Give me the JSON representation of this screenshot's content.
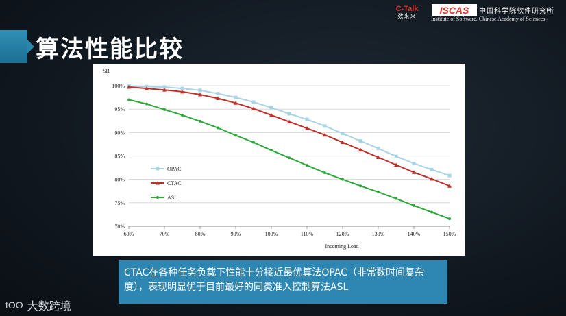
{
  "slide": {
    "title": "算法性能比较",
    "caption": "CTAC在各种任务负载下性能十分接近最优算法OPAC（非常数时间复杂度），表现明显优于目前最好的同类准入控制算法ASL"
  },
  "header": {
    "ctalk_logo": "C-Talk",
    "ctalk_sub": "数来来",
    "iscas_logo": "ISCAS",
    "iscas_cn": "中国科学院软件研究所",
    "iscas_en": "Institute of Software, Chinese Academy of Sciences"
  },
  "footer": {
    "brand_logo": "tOO",
    "brand_text": "大数跨境"
  },
  "colors": {
    "accent": "#2e86b3",
    "opac": "#a8d4e3",
    "ctac": "#c0302a",
    "asl": "#2ca83a"
  },
  "chart_data": {
    "type": "line",
    "ylabel": "SR",
    "xlabel": "Incoming Load",
    "x_ticks": [
      "60%",
      "70%",
      "80%",
      "90%",
      "100%",
      "110%",
      "120%",
      "130%",
      "140%",
      "150%"
    ],
    "y_ticks": [
      "70%",
      "75%",
      "80%",
      "85%",
      "90%",
      "95%",
      "100%"
    ],
    "ylim": [
      70,
      100
    ],
    "xlim": [
      60,
      150
    ],
    "grid": true,
    "legend_position": "left-bottom",
    "x": [
      60,
      65,
      70,
      75,
      80,
      85,
      90,
      95,
      100,
      105,
      110,
      115,
      120,
      125,
      130,
      135,
      140,
      145,
      150
    ],
    "series": [
      {
        "name": "OPAC",
        "color": "#a8d4e3",
        "marker": "square",
        "values": [
          99.9,
          99.8,
          99.7,
          99.4,
          99.0,
          98.3,
          97.5,
          96.5,
          95.3,
          94.0,
          92.8,
          91.4,
          89.8,
          88.2,
          86.6,
          84.9,
          83.4,
          82.1,
          80.8
        ]
      },
      {
        "name": "CTAC",
        "color": "#c0302a",
        "marker": "triangle",
        "values": [
          99.7,
          99.4,
          99.1,
          98.7,
          98.1,
          97.3,
          96.3,
          95.1,
          93.7,
          92.3,
          90.9,
          89.5,
          87.9,
          86.3,
          84.7,
          83.1,
          81.5,
          80.1,
          78.6
        ]
      },
      {
        "name": "ASL",
        "color": "#2ca83a",
        "marker": "dot",
        "values": [
          97.0,
          96.1,
          94.9,
          93.7,
          92.4,
          91.0,
          89.4,
          87.9,
          86.2,
          84.6,
          83.0,
          81.4,
          80.0,
          78.6,
          77.3,
          75.9,
          74.4,
          73.0,
          71.6
        ]
      }
    ]
  }
}
